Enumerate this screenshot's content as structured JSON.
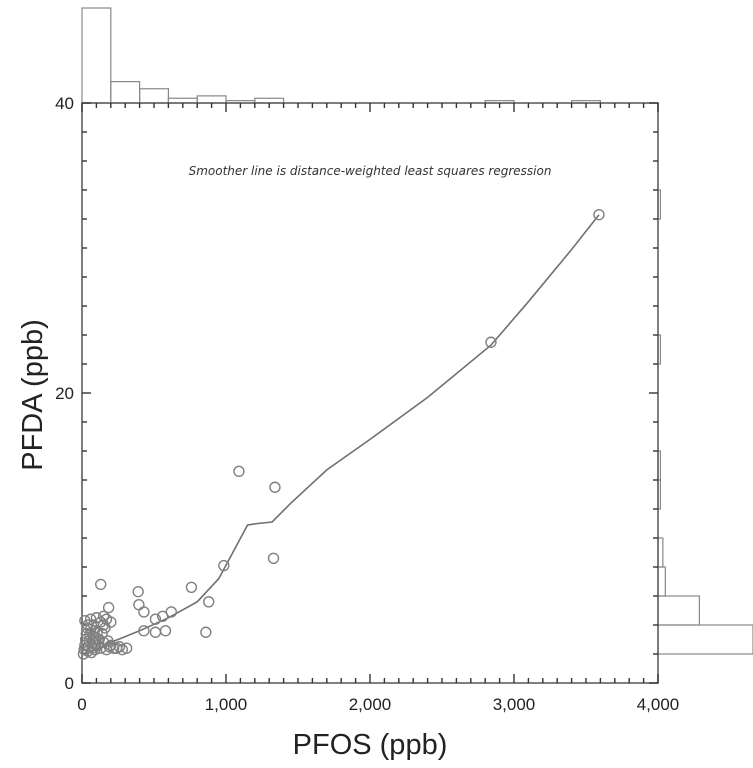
{
  "chart_data": {
    "type": "scatter",
    "title": "",
    "xlabel": "PFOS (ppb)",
    "ylabel": "PFDA (ppb)",
    "xlim": [
      0,
      4000
    ],
    "ylim": [
      0,
      40
    ],
    "x_ticks": [
      "0",
      "1,000",
      "2,000",
      "3,000",
      "4,000"
    ],
    "x_tick_values": [
      0,
      1000,
      2000,
      3000,
      4000
    ],
    "y_ticks": [
      "0",
      "20",
      "40"
    ],
    "y_tick_values": [
      0,
      20,
      40
    ],
    "annotation": "Smoother line is distance-weighted least squares regression",
    "grid": false,
    "marginal_histograms": [
      "top",
      "right"
    ],
    "colors": {
      "marker": "#808080",
      "line": "#707070",
      "frame": "#555555"
    },
    "points": [
      {
        "x": 10,
        "y": 2.0
      },
      {
        "x": 15,
        "y": 2.3
      },
      {
        "x": 20,
        "y": 2.6
      },
      {
        "x": 25,
        "y": 3.0
      },
      {
        "x": 30,
        "y": 3.4
      },
      {
        "x": 35,
        "y": 3.8
      },
      {
        "x": 40,
        "y": 2.2
      },
      {
        "x": 45,
        "y": 2.5
      },
      {
        "x": 50,
        "y": 2.9
      },
      {
        "x": 55,
        "y": 3.3
      },
      {
        "x": 60,
        "y": 3.7
      },
      {
        "x": 65,
        "y": 2.1
      },
      {
        "x": 70,
        "y": 2.4
      },
      {
        "x": 75,
        "y": 2.8
      },
      {
        "x": 80,
        "y": 3.2
      },
      {
        "x": 85,
        "y": 3.6
      },
      {
        "x": 90,
        "y": 2.3
      },
      {
        "x": 95,
        "y": 2.7
      },
      {
        "x": 100,
        "y": 3.1
      },
      {
        "x": 105,
        "y": 3.5
      },
      {
        "x": 110,
        "y": 2.6
      },
      {
        "x": 120,
        "y": 3.0
      },
      {
        "x": 130,
        "y": 2.4
      },
      {
        "x": 140,
        "y": 3.4
      },
      {
        "x": 150,
        "y": 2.8
      },
      {
        "x": 160,
        "y": 3.8
      },
      {
        "x": 170,
        "y": 2.3
      },
      {
        "x": 180,
        "y": 2.9
      },
      {
        "x": 190,
        "y": 2.5
      },
      {
        "x": 200,
        "y": 2.6
      },
      {
        "x": 220,
        "y": 2.4
      },
      {
        "x": 240,
        "y": 2.4
      },
      {
        "x": 260,
        "y": 2.5
      },
      {
        "x": 280,
        "y": 2.3
      },
      {
        "x": 310,
        "y": 2.4
      },
      {
        "x": 20,
        "y": 4.3
      },
      {
        "x": 40,
        "y": 4.0
      },
      {
        "x": 60,
        "y": 4.4
      },
      {
        "x": 80,
        "y": 4.0
      },
      {
        "x": 100,
        "y": 4.5
      },
      {
        "x": 130,
        "y": 4.2
      },
      {
        "x": 150,
        "y": 4.0
      },
      {
        "x": 170,
        "y": 4.4
      },
      {
        "x": 200,
        "y": 4.2
      },
      {
        "x": 130,
        "y": 6.8
      },
      {
        "x": 185,
        "y": 5.2
      },
      {
        "x": 150,
        "y": 4.6
      },
      {
        "x": 390,
        "y": 6.3
      },
      {
        "x": 395,
        "y": 5.4
      },
      {
        "x": 430,
        "y": 4.9
      },
      {
        "x": 430,
        "y": 3.6
      },
      {
        "x": 510,
        "y": 4.4
      },
      {
        "x": 510,
        "y": 3.5
      },
      {
        "x": 560,
        "y": 4.6
      },
      {
        "x": 580,
        "y": 3.6
      },
      {
        "x": 620,
        "y": 4.9
      },
      {
        "x": 760,
        "y": 6.6
      },
      {
        "x": 860,
        "y": 3.5
      },
      {
        "x": 880,
        "y": 5.6
      },
      {
        "x": 985,
        "y": 8.1
      },
      {
        "x": 1090,
        "y": 14.6
      },
      {
        "x": 1330,
        "y": 8.6
      },
      {
        "x": 1340,
        "y": 13.5
      },
      {
        "x": 2840,
        "y": 23.5
      },
      {
        "x": 3590,
        "y": 32.3
      }
    ],
    "smoother": [
      {
        "x": 0,
        "y": 2.0
      },
      {
        "x": 100,
        "y": 2.3
      },
      {
        "x": 200,
        "y": 2.8
      },
      {
        "x": 400,
        "y": 3.6
      },
      {
        "x": 600,
        "y": 4.5
      },
      {
        "x": 800,
        "y": 5.6
      },
      {
        "x": 950,
        "y": 7.2
      },
      {
        "x": 1080,
        "y": 9.6
      },
      {
        "x": 1150,
        "y": 10.9
      },
      {
        "x": 1220,
        "y": 11.0
      },
      {
        "x": 1320,
        "y": 11.1
      },
      {
        "x": 1450,
        "y": 12.4
      },
      {
        "x": 1700,
        "y": 14.7
      },
      {
        "x": 2000,
        "y": 16.8
      },
      {
        "x": 2400,
        "y": 19.7
      },
      {
        "x": 2840,
        "y": 23.3
      },
      {
        "x": 3100,
        "y": 26.3
      },
      {
        "x": 3400,
        "y": 29.9
      },
      {
        "x": 3590,
        "y": 32.3
      }
    ]
  }
}
